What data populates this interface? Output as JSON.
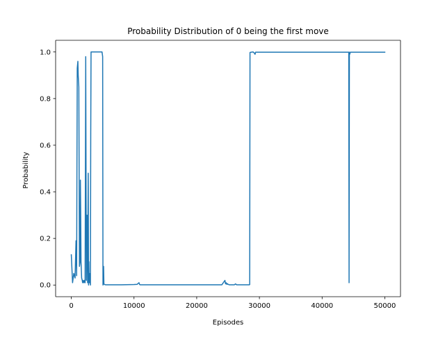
{
  "chart_data": {
    "type": "line",
    "title": "Probability Distribution of 0 being the first move",
    "xlabel": "Episodes",
    "ylabel": "Probability",
    "xlim": [
      -2500,
      52500
    ],
    "ylim": [
      -0.05,
      1.05
    ],
    "x_ticks": [
      0,
      10000,
      20000,
      30000,
      40000,
      50000
    ],
    "y_ticks": [
      0.0,
      0.2,
      0.4,
      0.6,
      0.8,
      1.0
    ],
    "x_tick_labels": [
      "0",
      "10000",
      "20000",
      "30000",
      "40000",
      "50000"
    ],
    "y_tick_labels": [
      "0.0",
      "0.2",
      "0.4",
      "0.6",
      "0.8",
      "1.0"
    ],
    "grid": false,
    "line_color": "#1f77b4",
    "series": [
      {
        "x": [
          0,
          200,
          400,
          600,
          750,
          850,
          950,
          1050,
          1100,
          1200,
          1300,
          1400,
          1450,
          1500,
          1550,
          1650,
          1750,
          1800,
          1900,
          2000,
          2100,
          2200,
          2300,
          2400,
          2500,
          2600,
          2700,
          2750,
          2800,
          2850,
          2900,
          2950,
          3000,
          3050,
          3100,
          3150,
          3200,
          3250,
          3300,
          3350,
          3400,
          3500,
          3600,
          3700,
          3800,
          4000,
          4500,
          4800,
          4900,
          5000,
          5050,
          5100,
          5150,
          5200,
          5300,
          5500,
          6000,
          8000,
          10000,
          10500,
          10800,
          10900,
          11000,
          11100,
          12000,
          15000,
          20000,
          24000,
          24500,
          24600,
          24700,
          24800,
          24900,
          25000,
          25200,
          26000,
          26200,
          26300,
          26400,
          27000,
          28000,
          28400,
          28450,
          28500,
          28700,
          29000,
          29200,
          29300,
          29400,
          30000,
          35000,
          40000,
          44000,
          44200,
          44250,
          44300,
          44350,
          44400,
          44500,
          45000,
          50000
        ],
        "y": [
          0.13,
          0.01,
          0.05,
          0.03,
          0.19,
          0.04,
          0.93,
          0.96,
          0.9,
          0.85,
          0.08,
          0.1,
          0.45,
          0.3,
          0.1,
          0.03,
          0.02,
          0.01,
          0.02,
          0.01,
          0.02,
          0.01,
          0.98,
          0.02,
          0.3,
          0.01,
          0.48,
          0.0,
          0.1,
          0.01,
          0.05,
          0.01,
          0.02,
          0.0,
          0.65,
          1.0,
          1.0,
          1.0,
          1.0,
          1.0,
          1.0,
          1.0,
          1.0,
          1.0,
          1.0,
          1.0,
          1.0,
          1.0,
          1.0,
          0.98,
          0.0,
          0.003,
          0.08,
          0.005,
          0.002,
          0.001,
          0.001,
          0.001,
          0.002,
          0.003,
          0.01,
          0.002,
          0.001,
          0.001,
          0.001,
          0.001,
          0.001,
          0.001,
          0.02,
          0.005,
          0.01,
          0.003,
          0.006,
          0.003,
          0.001,
          0.001,
          0.005,
          0.002,
          0.001,
          0.001,
          0.001,
          0.001,
          0.002,
          0.998,
          0.999,
          1.0,
          0.995,
          0.99,
          0.999,
          0.999,
          0.999,
          0.999,
          0.999,
          0.999,
          0.999,
          0.01,
          0.999,
          0.99,
          0.999,
          0.999,
          0.999
        ]
      }
    ]
  }
}
